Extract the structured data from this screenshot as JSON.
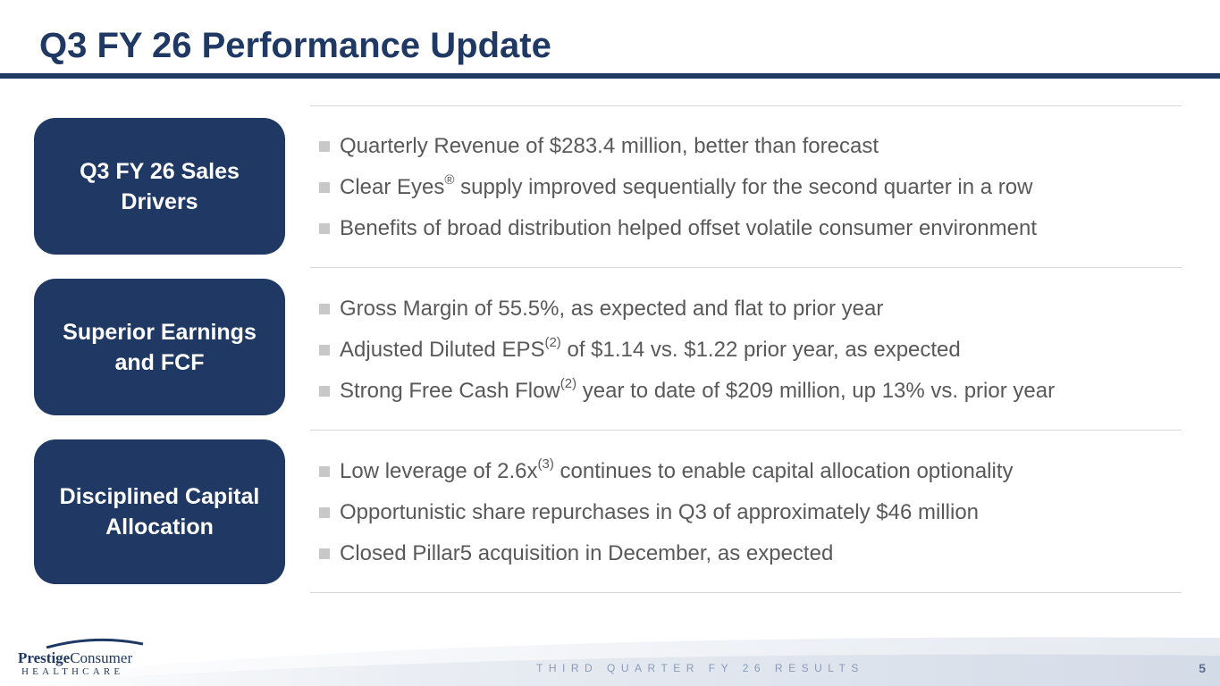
{
  "slide": {
    "title": "Q3 FY 26 Performance Update"
  },
  "sections": [
    {
      "label": "Q3 FY 26 Sales\nDrivers",
      "bullets": [
        {
          "text": "Quarterly Revenue of $283.4 million, better than forecast"
        },
        {
          "pre": "Clear Eyes",
          "sup": "®",
          "post": " supply improved sequentially for the second quarter in a row"
        },
        {
          "text": "Benefits of broad distribution helped offset volatile consumer environment"
        }
      ]
    },
    {
      "label": "Superior Earnings\nand FCF",
      "bullets": [
        {
          "text": "Gross Margin of 55.5%, as expected and flat to prior year"
        },
        {
          "pre": "Adjusted Diluted EPS",
          "sup": "(2)",
          "post": " of $1.14 vs. $1.22 prior year, as expected"
        },
        {
          "pre": "Strong Free Cash Flow",
          "sup": "(2)",
          "post": " year to date of $209 million, up 13% vs. prior year"
        }
      ]
    },
    {
      "label": "Disciplined Capital\nAllocation",
      "bullets": [
        {
          "pre": "Low leverage of 2.6x",
          "sup": "(3)",
          "post": " continues to enable capital allocation optionality"
        },
        {
          "text": "Opportunistic share repurchases in Q3 of approximately $46 million"
        },
        {
          "text": "Closed Pillar5 acquisition in December, as expected"
        }
      ]
    }
  ],
  "footer": {
    "logo_prestige": "Prestige",
    "logo_consumer": "Consumer",
    "logo_healthcare": "HEALTHCARE",
    "center_text": "THIRD QUARTER FY 26 RESULTS",
    "page_number": "5"
  },
  "colors": {
    "brand_navy": "#1f3864",
    "bullet_text": "#595959",
    "bullet_marker": "#c8c8c8",
    "separator": "#d6d6d6"
  }
}
